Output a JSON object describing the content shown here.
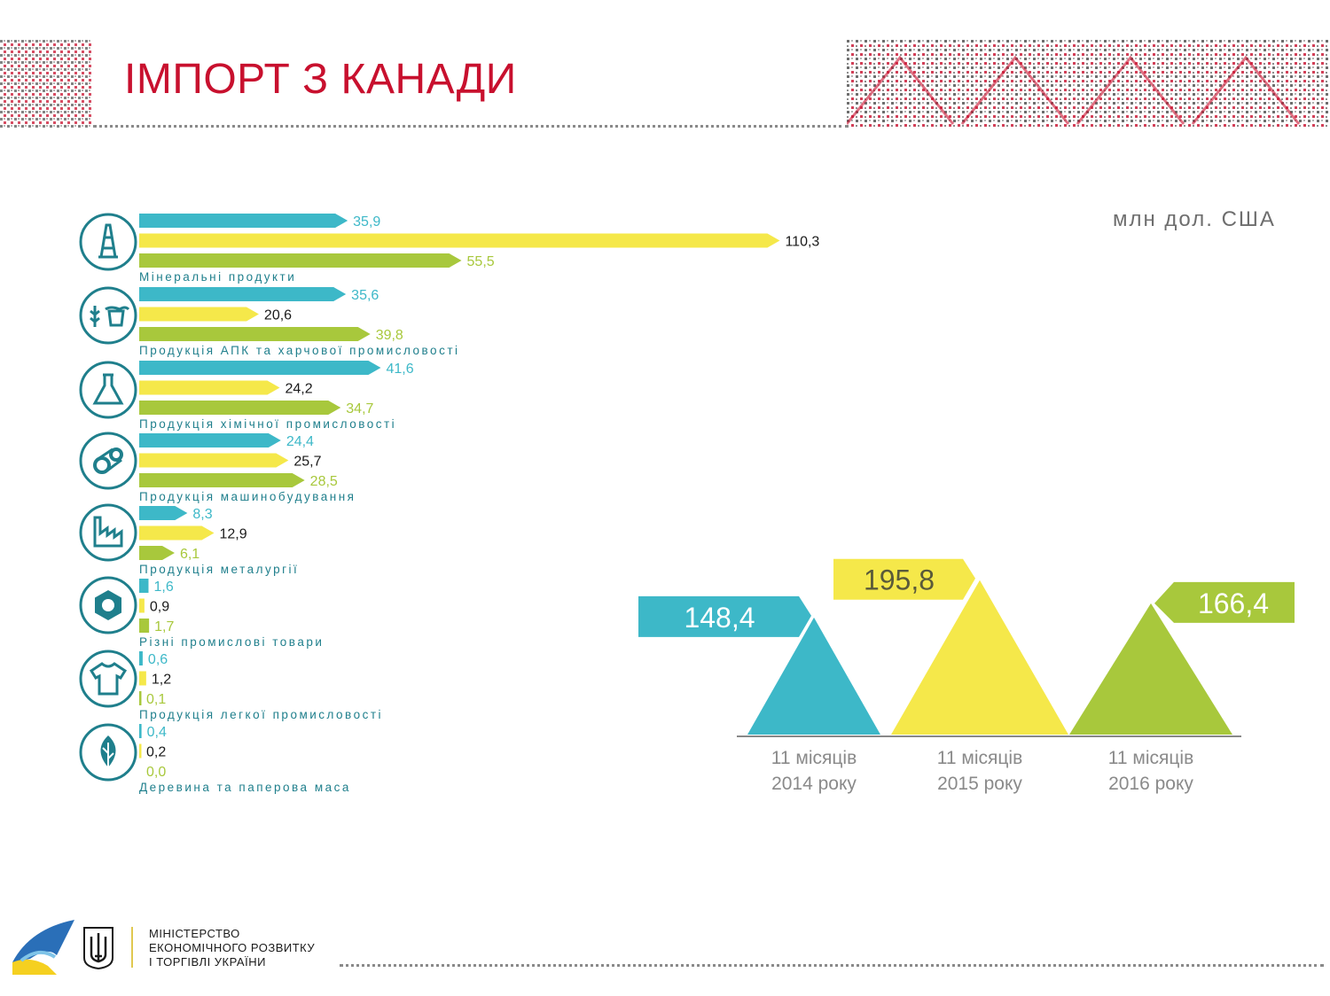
{
  "header": {
    "title": "ІМПОРТ З КАНАДИ"
  },
  "unit_label": "млн дол. США",
  "colors": {
    "teal": "#3db8c8",
    "yellow": "#f5e84a",
    "green": "#a8c83c",
    "title_red": "#c8102e",
    "icon_teal": "#1f7f8c"
  },
  "chart_data": [
    {
      "type": "bar",
      "orientation": "horizontal",
      "categories": [
        "Мінеральні продукти",
        "Продукція АПК та харчової промисловості",
        "Продукція хімічної промисловості",
        "Продукція машинобудування",
        "Продукція металургії",
        "Різні промислові товари",
        "Продукція легкої промисловості",
        "Деревина та паперова маса"
      ],
      "icons": [
        "oil-derrick-icon",
        "wheat-cow-icon",
        "flask-icon",
        "gears-icon",
        "factory-icon",
        "nut-icon",
        "tshirt-icon",
        "leaf-icon"
      ],
      "series": [
        {
          "color": "#3db8c8",
          "values": [
            35.9,
            35.6,
            41.6,
            24.4,
            8.3,
            1.6,
            0.6,
            0.4
          ],
          "labels": [
            "35,9",
            "35,6",
            "41,6",
            "24,4",
            "8,3",
            "1,6",
            "0,6",
            "0,4"
          ]
        },
        {
          "color": "#f5e84a",
          "values": [
            110.3,
            20.6,
            24.2,
            25.7,
            12.9,
            0.9,
            1.2,
            0.2
          ],
          "labels": [
            "110,3",
            "20,6",
            "24,2",
            "25,7",
            "12,9",
            "0,9",
            "1,2",
            "0,2"
          ]
        },
        {
          "color": "#a8c83c",
          "values": [
            55.5,
            39.8,
            34.7,
            28.5,
            6.1,
            1.7,
            0.1,
            0.0
          ],
          "labels": [
            "55,5",
            "39,8",
            "34,7",
            "28,5",
            "6,1",
            "1,7",
            "0,1",
            "0,0"
          ]
        }
      ]
    },
    {
      "type": "bar",
      "categories": [
        "11 місяців\n2014 року",
        "11 місяців\n2015 року",
        "11 місяців\n2016 року"
      ],
      "values": [
        148.4,
        195.8,
        166.4
      ],
      "labels": [
        "148,4",
        "195,8",
        "166,4"
      ],
      "colors": [
        "#3db8c8",
        "#f5e84a",
        "#a8c83c"
      ]
    }
  ],
  "footer": {
    "ministry_lines": [
      "МІНІСТЕРСТВО",
      "ЕКОНОМІЧНОГО РОЗВИТКУ",
      "І ТОРГІВЛІ УКРАЇНИ"
    ]
  }
}
